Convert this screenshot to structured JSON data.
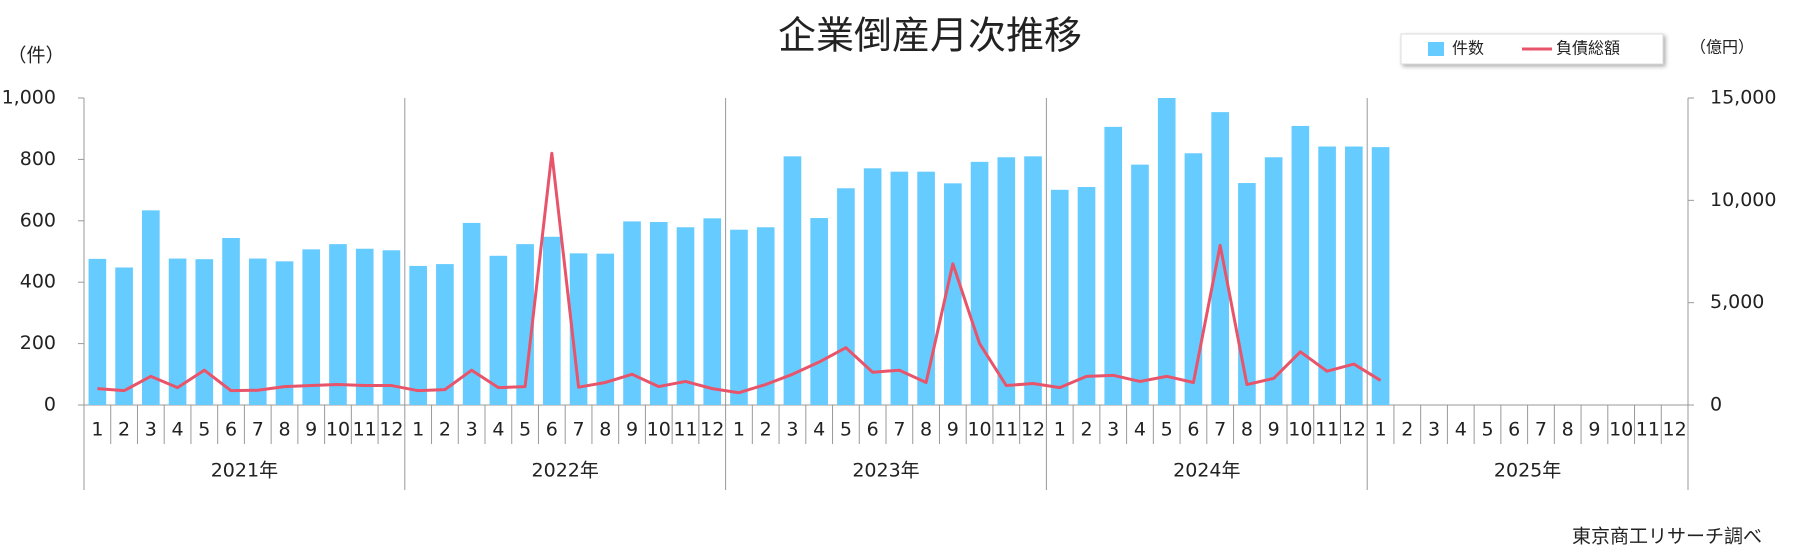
{
  "chart_data": {
    "type": "bar",
    "title": "企業倒産月次推移",
    "y_label": "（件）",
    "y2_label": "（億円）",
    "source": "東京商工リサーチ調べ",
    "categories": [
      "1",
      "2",
      "3",
      "4",
      "5",
      "6",
      "7",
      "8",
      "9",
      "10",
      "11",
      "12",
      "1",
      "2",
      "3",
      "4",
      "5",
      "6",
      "7",
      "8",
      "9",
      "10",
      "11",
      "12",
      "1",
      "2",
      "3",
      "4",
      "5",
      "6",
      "7",
      "8",
      "9",
      "10",
      "11",
      "12",
      "1",
      "2",
      "3",
      "4",
      "5",
      "6",
      "7",
      "8",
      "9",
      "10",
      "11",
      "12",
      "1",
      "2",
      "3",
      "4",
      "5",
      "6",
      "7",
      "8",
      "9",
      "10",
      "11",
      "12"
    ],
    "groups": [
      "2021年",
      "2022年",
      "2023年",
      "2024年",
      "2025年"
    ],
    "series": [
      {
        "name": "件数",
        "type": "bar",
        "color": "#66ccff",
        "values": [
          476,
          448,
          634,
          477,
          475,
          544,
          477,
          468,
          507,
          524,
          509,
          504,
          453,
          459,
          593,
          486,
          524,
          548,
          494,
          493,
          598,
          596,
          579,
          608,
          571,
          579,
          810,
          609,
          706,
          771,
          760,
          760,
          722,
          792,
          807,
          810,
          701,
          710,
          906,
          783,
          1000,
          820,
          954,
          723,
          807,
          909,
          842,
          842,
          840,
          null,
          null,
          null,
          null,
          null,
          null,
          null,
          null,
          null,
          null,
          null
        ]
      },
      {
        "name": "負債総額",
        "type": "line",
        "axis": "y2",
        "color": "#e8546a",
        "values": [
          800,
          700,
          1400,
          850,
          1700,
          700,
          720,
          900,
          950,
          1000,
          950,
          950,
          700,
          750,
          1700,
          850,
          900,
          12300,
          870,
          1100,
          1500,
          900,
          1150,
          800,
          600,
          1000,
          1500,
          2100,
          2800,
          1600,
          1700,
          1100,
          6900,
          3000,
          950,
          1050,
          850,
          1400,
          1450,
          1150,
          1400,
          1100,
          7800,
          1000,
          1300,
          2600,
          1650,
          2000,
          1200,
          null,
          null,
          null,
          null,
          null,
          null,
          null,
          null,
          null,
          null,
          null
        ]
      }
    ],
    "ylim": [
      0,
      1000
    ],
    "yticks": [
      0,
      200,
      400,
      600,
      800,
      {
        "value": 1000,
        "label": "1,000"
      }
    ],
    "y2lim": [
      0,
      15000
    ],
    "y2ticks": [
      0,
      {
        "value": 5000,
        "label": "5,000"
      },
      {
        "value": 10000,
        "label": "10,000"
      },
      {
        "value": 15000,
        "label": "15,000"
      }
    ]
  }
}
